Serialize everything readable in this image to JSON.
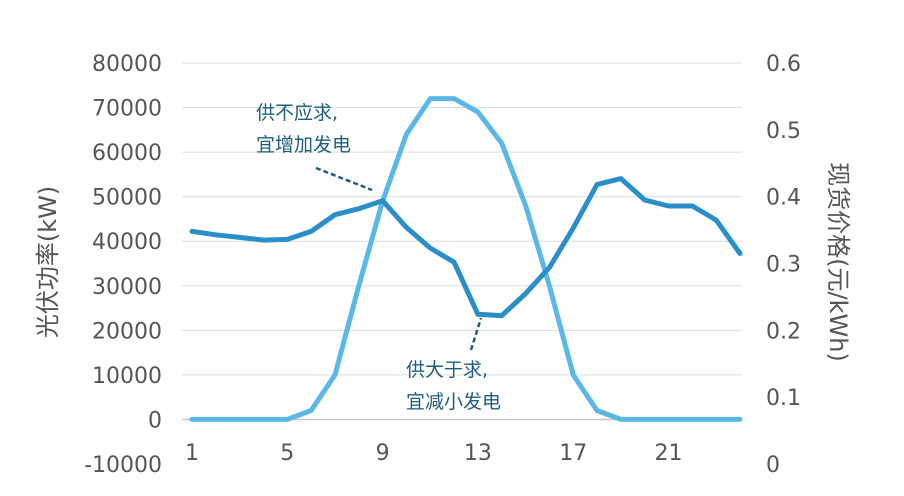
{
  "chart_data": {
    "type": "line",
    "xlabel": "",
    "ylabel_left": "光伏功率(kW)",
    "ylabel_right": "现货价格(元/kWh)",
    "x": [
      1,
      2,
      3,
      4,
      5,
      6,
      7,
      8,
      9,
      10,
      11,
      12,
      13,
      14,
      15,
      16,
      17,
      18,
      19,
      20,
      21,
      22,
      23,
      24
    ],
    "x_ticks": [
      1,
      5,
      9,
      13,
      17,
      21
    ],
    "ylim_left": [
      -10000,
      80000
    ],
    "yticks_left": [
      -10000,
      0,
      10000,
      20000,
      30000,
      40000,
      50000,
      60000,
      70000,
      80000
    ],
    "ylim_right": [
      0,
      0.6
    ],
    "yticks_right": [
      0,
      0.1,
      0.2,
      0.3,
      0.4,
      0.5,
      0.6
    ],
    "grid": true,
    "series": [
      {
        "name": "",
        "axis": "left",
        "color": "#5bb8e6",
        "values": [
          0,
          0,
          0,
          0,
          0,
          2000,
          10000,
          30000,
          49000,
          64000,
          72000,
          72000,
          69000,
          62000,
          48000,
          30000,
          10000,
          2000,
          0,
          0,
          0,
          0,
          0,
          0
        ]
      },
      {
        "name": "",
        "axis": "right",
        "color": "#2a8fc9",
        "values": [
          0.348,
          0.343,
          0.339,
          0.335,
          0.336,
          0.348,
          0.373,
          0.382,
          0.394,
          0.354,
          0.323,
          0.302,
          0.224,
          0.222,
          0.255,
          0.294,
          0.353,
          0.418,
          0.427,
          0.395,
          0.386,
          0.386,
          0.365,
          0.315
        ]
      }
    ],
    "annotations": [
      {
        "lines": [
          "供不应求,",
          "宜增加发电"
        ]
      },
      {
        "lines": [
          "供大于求,",
          "宜减小发电"
        ]
      }
    ]
  }
}
